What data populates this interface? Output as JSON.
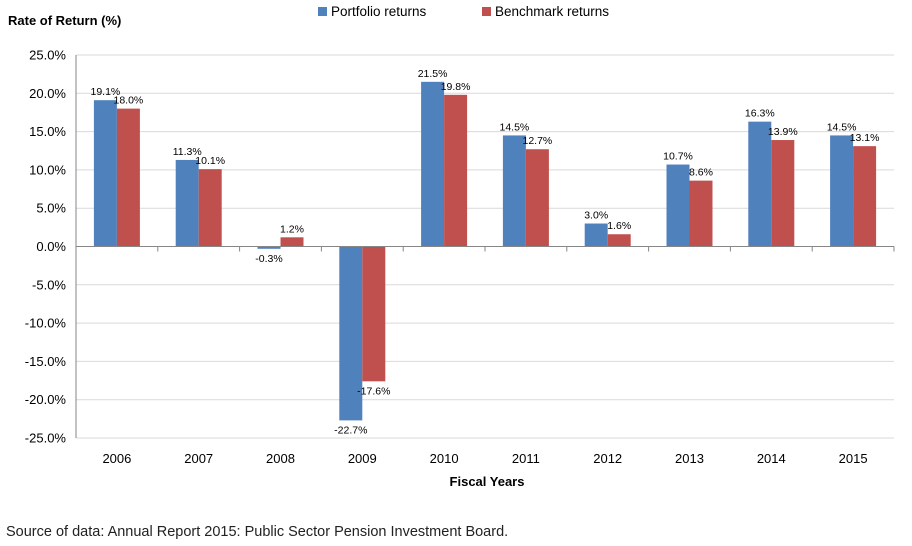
{
  "chart_data": {
    "type": "bar",
    "ylabel": "Rate of Return (%)",
    "xlabel": "Fiscal Years",
    "categories": [
      "2006",
      "2007",
      "2008",
      "2009",
      "2010",
      "2011",
      "2012",
      "2013",
      "2014",
      "2015"
    ],
    "series": [
      {
        "name": "Portfolio returns",
        "color": "#4F81BD",
        "values": [
          19.1,
          11.3,
          -0.3,
          -22.7,
          21.5,
          14.5,
          3.0,
          10.7,
          16.3,
          14.5
        ],
        "labels": [
          "19.1%",
          "11.3%",
          "-0.3%",
          "-22.7%",
          "21.5%",
          "14.5%",
          "3.0%",
          "10.7%",
          "16.3%",
          "14.5%"
        ]
      },
      {
        "name": "Benchmark returns",
        "color": "#C0504D",
        "values": [
          18.0,
          10.1,
          1.2,
          -17.6,
          19.8,
          12.7,
          1.6,
          8.6,
          13.9,
          13.1
        ],
        "labels": [
          "18.0%",
          "10.1%",
          "1.2%",
          "-17.6%",
          "19.8%",
          "12.7%",
          "1.6%",
          "8.6%",
          "13.9%",
          "13.1%"
        ]
      }
    ],
    "ylim": [
      -25,
      25
    ],
    "yticks": [
      25,
      20,
      15,
      10,
      5,
      0,
      -5,
      -10,
      -15,
      -20,
      -25
    ],
    "ytick_labels": [
      "25.0%",
      "20.0%",
      "15.0%",
      "10.0%",
      "5.0%",
      "0.0%",
      "-5.0%",
      "-10.0%",
      "-15.0%",
      "-20.0%",
      "-25.0%"
    ],
    "grid": true,
    "legend_position": "top-center"
  },
  "source_note": "Source of data: Annual Report 2015: Public Sector Pension Investment Board."
}
